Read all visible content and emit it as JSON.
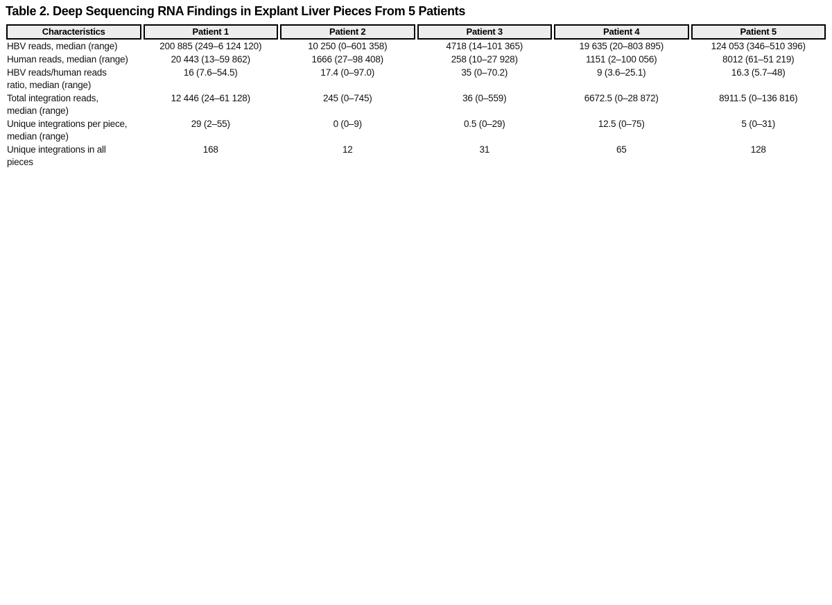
{
  "title": "Table 2. Deep Sequencing RNA Findings in Explant Liver Pieces From 5 Patients",
  "table": {
    "header_bg": "#ededed",
    "border_color": "#000000",
    "columns": [
      "Characteristics",
      "Patient 1",
      "Patient 2",
      "Patient 3",
      "Patient 4",
      "Patient 5"
    ],
    "rows": [
      {
        "label": "HBV reads, median (range)",
        "values": [
          "200 885 (249–6 124 120)",
          "10 250 (0–601 358)",
          "4718 (14–101 365)",
          "19 635 (20–803 895)",
          "124 053 (346–510 396)"
        ]
      },
      {
        "label": "Human reads, median (range)",
        "values": [
          "20 443 (13–59 862)",
          "1666 (27–98 408)",
          "258 (10–27 928)",
          "1151 (2–100 056)",
          "8012 (61–51 219)"
        ]
      },
      {
        "label": "HBV reads/human reads\nratio, median (range)",
        "values": [
          "16 (7.6–54.5)",
          "17.4 (0–97.0)",
          "35 (0–70.2)",
          "9 (3.6–25.1)",
          "16.3 (5.7–48)"
        ]
      },
      {
        "label": "Total integration reads,\nmedian (range)",
        "values": [
          "12 446 (24–61 128)",
          "245 (0–745)",
          "36 (0–559)",
          "6672.5 (0–28 872)",
          "8911.5 (0–136 816)"
        ]
      },
      {
        "label": "Unique integrations per piece,\nmedian (range)",
        "values": [
          "29 (2–55)",
          "0 (0–9)",
          "0.5 (0–29)",
          "12.5 (0–75)",
          "5 (0–31)"
        ]
      },
      {
        "label": "Unique integrations in all\npieces",
        "values": [
          "168",
          "12",
          "31",
          "65",
          "128"
        ]
      }
    ]
  }
}
